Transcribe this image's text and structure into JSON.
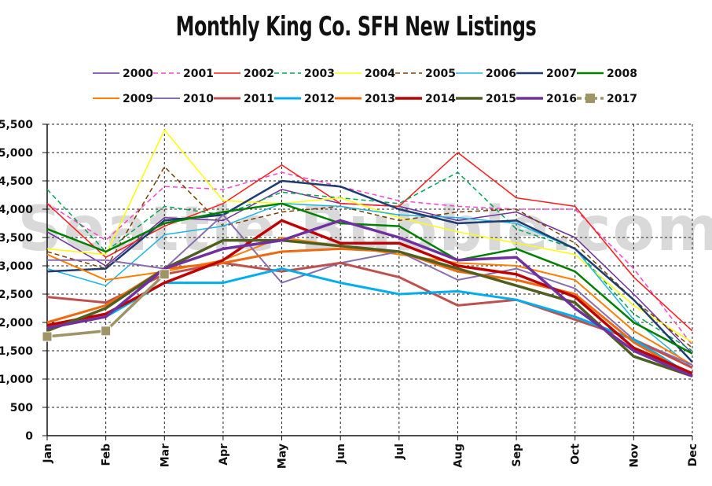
{
  "chart_data": {
    "type": "line",
    "title": "Monthly King Co. SFH New Listings",
    "watermark": "Seattle Bubble.com",
    "xlabel": "",
    "ylabel": "",
    "categories": [
      "Jan",
      "Feb",
      "Mar",
      "Apr",
      "May",
      "Jun",
      "Jul",
      "Aug",
      "Sep",
      "Oct",
      "Nov",
      "Dec"
    ],
    "ylim": [
      0,
      5500
    ],
    "yticks": [
      "0",
      "500",
      "1,000",
      "1,500",
      "2,000",
      "2,500",
      "3,000",
      "3,500",
      "4,000",
      "4,500",
      "5,000",
      "5,500"
    ],
    "grid": true,
    "legend": "top",
    "series": [
      {
        "name": "2000",
        "color": "#7030a0",
        "style": "solid",
        "width": 1.5,
        "values": [
          3600,
          3000,
          3850,
          3800,
          4350,
          4100,
          4050,
          3800,
          3950,
          3500,
          2500,
          1450
        ]
      },
      {
        "name": "2001",
        "color": "#ff44cc",
        "style": "dashed",
        "width": 1.5,
        "values": [
          4100,
          3450,
          4400,
          4350,
          4650,
          4400,
          4150,
          4050,
          4000,
          4000,
          2950,
          1600
        ]
      },
      {
        "name": "2002",
        "color": "#ff1a1a",
        "style": "solid",
        "width": 1.5,
        "values": [
          4100,
          3150,
          3700,
          4100,
          4780,
          4100,
          4050,
          5000,
          4200,
          4050,
          2800,
          1850
        ]
      },
      {
        "name": "2003",
        "color": "#00a651",
        "style": "dashed",
        "width": 1.5,
        "values": [
          4350,
          3250,
          4050,
          3900,
          4300,
          4200,
          4100,
          4650,
          3650,
          3300,
          2150,
          1500
        ]
      },
      {
        "name": "2004",
        "color": "#ffff00",
        "style": "solid",
        "width": 1.5,
        "values": [
          3300,
          3200,
          5400,
          4150,
          4100,
          4200,
          3850,
          3600,
          3400,
          3200,
          2300,
          1650
        ]
      },
      {
        "name": "2005",
        "color": "#7b3f00",
        "style": "dashed",
        "width": 1.5,
        "values": [
          3250,
          2950,
          4750,
          3700,
          3950,
          4050,
          3800,
          3950,
          4000,
          3400,
          2400,
          1550
        ]
      },
      {
        "name": "2006",
        "color": "#1eb4e6",
        "style": "solid",
        "width": 1.5,
        "values": [
          2950,
          2650,
          3550,
          3700,
          4100,
          4050,
          3900,
          3850,
          3750,
          3300,
          2050,
          1200
        ]
      },
      {
        "name": "2007",
        "color": "#1f3d70",
        "style": "solid",
        "width": 2.5,
        "values": [
          2900,
          2950,
          3800,
          3900,
          4500,
          4400,
          4000,
          3750,
          3800,
          3300,
          2400,
          1300
        ]
      },
      {
        "name": "2008",
        "color": "#008000",
        "style": "solid",
        "width": 2.5,
        "values": [
          3650,
          3250,
          3750,
          3950,
          4100,
          3750,
          3700,
          3100,
          3300,
          2900,
          2000,
          1450
        ]
      },
      {
        "name": "2009",
        "color": "#ff7f00",
        "style": "solid",
        "width": 2,
        "values": [
          3200,
          2750,
          2900,
          3100,
          3500,
          3350,
          3200,
          3050,
          3000,
          2750,
          1850,
          1250
        ]
      },
      {
        "name": "2010",
        "color": "#8a6db0",
        "style": "solid",
        "width": 2,
        "values": [
          3100,
          3100,
          2950,
          3900,
          2700,
          3050,
          3250,
          2750,
          2950,
          2600,
          1700,
          1250
        ]
      },
      {
        "name": "2011",
        "color": "#c0504d",
        "style": "solid",
        "width": 3,
        "values": [
          2450,
          2350,
          2850,
          3050,
          2900,
          3050,
          2800,
          2300,
          2400,
          2050,
          1700,
          1200
        ]
      },
      {
        "name": "2012",
        "color": "#00aeef",
        "style": "solid",
        "width": 3,
        "values": [
          1900,
          2100,
          2700,
          2700,
          2950,
          2700,
          2500,
          2550,
          2400,
          2100,
          1700,
          1050
        ]
      },
      {
        "name": "2013",
        "color": "#ee6a10",
        "style": "solid",
        "width": 3,
        "values": [
          2000,
          2300,
          2950,
          3050,
          3250,
          3300,
          3250,
          2900,
          2750,
          2500,
          1650,
          1050
        ]
      },
      {
        "name": "2014",
        "color": "#c00000",
        "style": "solid",
        "width": 3.5,
        "values": [
          1950,
          2150,
          2700,
          3100,
          3800,
          3400,
          3400,
          3000,
          2850,
          2450,
          1550,
          1100
        ]
      },
      {
        "name": "2015",
        "color": "#4f5f1f",
        "style": "solid",
        "width": 3.5,
        "values": [
          1850,
          2250,
          2950,
          3450,
          3450,
          3350,
          3250,
          2950,
          2650,
          2350,
          1400,
          1050
        ]
      },
      {
        "name": "2016",
        "color": "#7030a0",
        "style": "solid",
        "width": 3.5,
        "values": [
          1900,
          2100,
          2950,
          3300,
          3450,
          3800,
          3500,
          3100,
          3150,
          2250,
          1500,
          1050
        ]
      },
      {
        "name": "2017",
        "color": "#9e9466",
        "style": "dashed-marker",
        "width": 3.5,
        "values": [
          1750,
          1850,
          2850,
          null,
          null,
          null,
          null,
          null,
          null,
          null,
          null,
          null
        ]
      }
    ]
  }
}
